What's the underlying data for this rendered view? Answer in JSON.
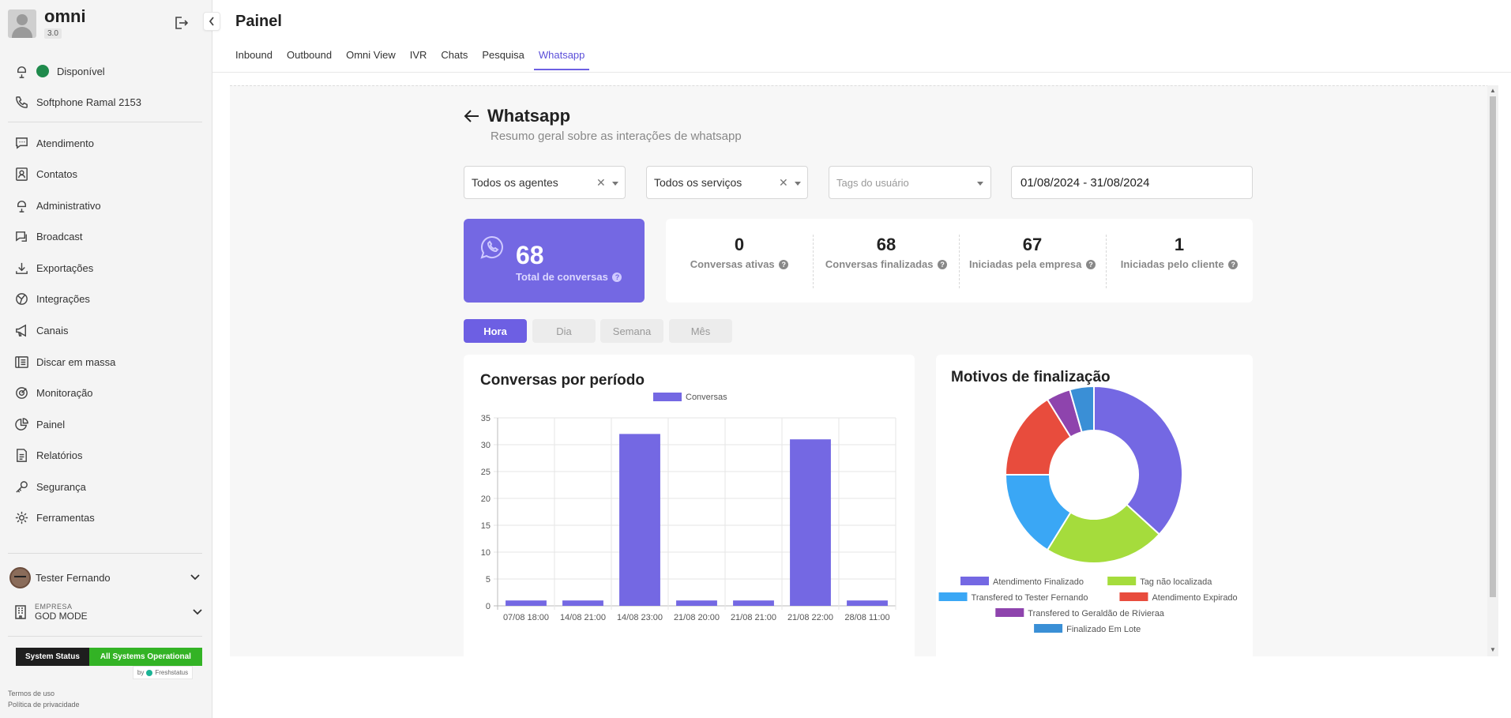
{
  "brand": {
    "name": "omni",
    "version": "3.0"
  },
  "sidebar": {
    "status_label": "Disponível",
    "softphone_label": "Softphone Ramal 2153",
    "items": [
      {
        "label": "Atendimento",
        "icon": "chat-icon"
      },
      {
        "label": "Contatos",
        "icon": "contacts-icon"
      },
      {
        "label": "Administrativo",
        "icon": "admin-icon"
      },
      {
        "label": "Broadcast",
        "icon": "broadcast-icon"
      },
      {
        "label": "Exportações",
        "icon": "download-icon"
      },
      {
        "label": "Integrações",
        "icon": "integrations-icon"
      },
      {
        "label": "Canais",
        "icon": "megaphone-icon"
      },
      {
        "label": "Discar em massa",
        "icon": "mass-dial-icon"
      },
      {
        "label": "Monitoração",
        "icon": "target-icon"
      },
      {
        "label": "Painel",
        "icon": "pie-icon"
      },
      {
        "label": "Relatórios",
        "icon": "report-icon"
      },
      {
        "label": "Segurança",
        "icon": "key-icon"
      },
      {
        "label": "Ferramentas",
        "icon": "gear-icon"
      }
    ],
    "user_name": "Tester Fernando",
    "company_label": "EMPRESA",
    "company_value": "GOD MODE",
    "system_status_label": "System Status",
    "system_status_value": "All Systems Operational",
    "status_by": "by",
    "status_vendor": "Freshstatus",
    "terms": "Termos de uso",
    "privacy": "Política de privacidade"
  },
  "header": {
    "title": "Painel",
    "tabs": [
      "Inbound",
      "Outbound",
      "Omni View",
      "IVR",
      "Chats",
      "Pesquisa",
      "Whatsapp"
    ],
    "active_tab": "Whatsapp"
  },
  "whatsapp": {
    "title": "Whatsapp",
    "subtitle": "Resumo geral sobre as interações de whatsapp",
    "filters": {
      "agents": "Todos os agentes",
      "services": "Todos os serviços",
      "tags_placeholder": "Tags do usuário",
      "date_range": "01/08/2024 - 31/08/2024"
    },
    "total": {
      "value": "68",
      "label": "Total de conversas"
    },
    "stats": [
      {
        "value": "0",
        "label": "Conversas ativas"
      },
      {
        "value": "68",
        "label": "Conversas finalizadas"
      },
      {
        "value": "67",
        "label": "Iniciadas pela empresa"
      },
      {
        "value": "1",
        "label": "Iniciadas pelo cliente"
      }
    ],
    "periods": [
      "Hora",
      "Dia",
      "Semana",
      "Mês"
    ],
    "active_period": "Hora",
    "bar_chart_title": "Conversas por período",
    "pie_chart_title": "Motivos de finalização"
  },
  "colors": {
    "accent": "#6d5fe3",
    "bar": "#7468e3",
    "status_green": "#1f8a4c"
  },
  "chart_data": [
    {
      "type": "bar",
      "title": "Conversas por período",
      "categories": [
        "07/08 18:00",
        "14/08 21:00",
        "14/08 23:00",
        "21/08 20:00",
        "21/08 21:00",
        "21/08 22:00",
        "28/08 11:00"
      ],
      "series": [
        {
          "name": "Conversas",
          "values": [
            1,
            1,
            32,
            1,
            1,
            31,
            1
          ]
        }
      ],
      "ylim": [
        0,
        35
      ],
      "yticks": [
        0,
        5,
        10,
        15,
        20,
        25,
        30,
        35
      ],
      "grid": true,
      "legend": "top"
    },
    {
      "type": "pie",
      "title": "Motivos de finalização",
      "labels": [
        "Atendimento Finalizado",
        "Tag não localizada",
        "Transfered to Tester Fernando",
        "Atendimento Expirado",
        "Transfered to Geraldão de Rívieraa",
        "Finalizado Em Lote"
      ],
      "values": [
        25,
        15,
        11,
        11,
        3,
        3
      ],
      "colors": [
        "#7468e3",
        "#a5dc3c",
        "#3aa7f5",
        "#e84c3d",
        "#8e44ad",
        "#3a8fd6"
      ],
      "legend": "bottom"
    }
  ]
}
